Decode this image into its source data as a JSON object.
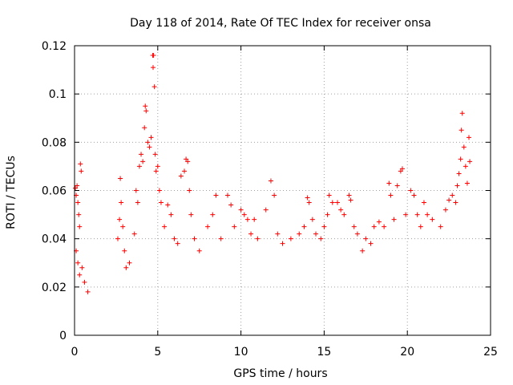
{
  "chart_data": {
    "type": "scatter",
    "title": "Day 118 of 2014, Rate Of TEC Index for receiver onsa",
    "xlabel": "GPS time / hours",
    "ylabel": "ROTI / TECUs",
    "xlim": [
      0,
      25
    ],
    "ylim": [
      0,
      0.12
    ],
    "x_ticks": [
      0,
      5,
      10,
      15,
      20,
      25
    ],
    "x_tick_labels": [
      "0",
      "5",
      "10",
      "15",
      "20",
      "25"
    ],
    "y_ticks": [
      0,
      0.02,
      0.04,
      0.06,
      0.08,
      0.1,
      0.12
    ],
    "y_tick_labels": [
      "0",
      "0.02",
      "0.04",
      "0.06",
      "0.08",
      "0.1",
      "0.12"
    ],
    "grid": true,
    "marker": "+",
    "series": [
      {
        "name": "onsa",
        "color": "#ff0000",
        "points": [
          [
            0.05,
            0.061
          ],
          [
            0.1,
            0.058
          ],
          [
            0.15,
            0.062
          ],
          [
            0.2,
            0.055
          ],
          [
            0.25,
            0.05
          ],
          [
            0.3,
            0.045
          ],
          [
            0.35,
            0.071
          ],
          [
            0.4,
            0.068
          ],
          [
            0.1,
            0.035
          ],
          [
            0.2,
            0.03
          ],
          [
            0.3,
            0.025
          ],
          [
            0.45,
            0.028
          ],
          [
            0.6,
            0.022
          ],
          [
            0.8,
            0.018
          ],
          [
            2.6,
            0.04
          ],
          [
            2.7,
            0.048
          ],
          [
            2.75,
            0.065
          ],
          [
            2.8,
            0.055
          ],
          [
            2.9,
            0.045
          ],
          [
            3.0,
            0.035
          ],
          [
            3.1,
            0.028
          ],
          [
            3.3,
            0.03
          ],
          [
            3.6,
            0.042
          ],
          [
            3.7,
            0.06
          ],
          [
            3.8,
            0.055
          ],
          [
            3.9,
            0.07
          ],
          [
            4.0,
            0.075
          ],
          [
            4.1,
            0.072
          ],
          [
            4.2,
            0.086
          ],
          [
            4.25,
            0.095
          ],
          [
            4.3,
            0.093
          ],
          [
            4.4,
            0.08
          ],
          [
            4.5,
            0.078
          ],
          [
            4.6,
            0.082
          ],
          [
            4.7,
            0.116
          ],
          [
            4.75,
            0.116
          ],
          [
            4.72,
            0.111
          ],
          [
            4.8,
            0.103
          ],
          [
            4.85,
            0.075
          ],
          [
            4.9,
            0.068
          ],
          [
            5.0,
            0.07
          ],
          [
            5.1,
            0.06
          ],
          [
            5.2,
            0.055
          ],
          [
            5.4,
            0.045
          ],
          [
            5.6,
            0.054
          ],
          [
            5.8,
            0.05
          ],
          [
            6.0,
            0.04
          ],
          [
            6.2,
            0.038
          ],
          [
            6.4,
            0.066
          ],
          [
            6.6,
            0.068
          ],
          [
            6.7,
            0.073
          ],
          [
            6.8,
            0.072
          ],
          [
            6.9,
            0.06
          ],
          [
            7.0,
            0.05
          ],
          [
            7.2,
            0.04
          ],
          [
            7.5,
            0.035
          ],
          [
            8.0,
            0.045
          ],
          [
            8.3,
            0.05
          ],
          [
            8.5,
            0.058
          ],
          [
            8.8,
            0.04
          ],
          [
            9.2,
            0.058
          ],
          [
            9.4,
            0.054
          ],
          [
            9.6,
            0.045
          ],
          [
            10.0,
            0.052
          ],
          [
            10.2,
            0.05
          ],
          [
            10.4,
            0.048
          ],
          [
            10.6,
            0.042
          ],
          [
            10.8,
            0.048
          ],
          [
            11.0,
            0.04
          ],
          [
            11.5,
            0.052
          ],
          [
            11.8,
            0.064
          ],
          [
            12.0,
            0.058
          ],
          [
            12.2,
            0.042
          ],
          [
            12.5,
            0.038
          ],
          [
            13.0,
            0.04
          ],
          [
            13.5,
            0.042
          ],
          [
            13.8,
            0.045
          ],
          [
            14.0,
            0.057
          ],
          [
            14.1,
            0.055
          ],
          [
            14.3,
            0.048
          ],
          [
            14.5,
            0.042
          ],
          [
            14.8,
            0.04
          ],
          [
            15.0,
            0.045
          ],
          [
            15.2,
            0.05
          ],
          [
            15.3,
            0.058
          ],
          [
            15.5,
            0.055
          ],
          [
            15.8,
            0.055
          ],
          [
            16.0,
            0.052
          ],
          [
            16.2,
            0.05
          ],
          [
            16.5,
            0.058
          ],
          [
            16.6,
            0.056
          ],
          [
            16.8,
            0.045
          ],
          [
            17.0,
            0.042
          ],
          [
            17.3,
            0.035
          ],
          [
            17.5,
            0.04
          ],
          [
            17.8,
            0.038
          ],
          [
            18.0,
            0.045
          ],
          [
            18.3,
            0.047
          ],
          [
            18.6,
            0.045
          ],
          [
            18.9,
            0.063
          ],
          [
            19.0,
            0.058
          ],
          [
            19.2,
            0.048
          ],
          [
            19.4,
            0.062
          ],
          [
            19.6,
            0.068
          ],
          [
            19.7,
            0.069
          ],
          [
            19.9,
            0.05
          ],
          [
            20.2,
            0.06
          ],
          [
            20.4,
            0.058
          ],
          [
            20.6,
            0.05
          ],
          [
            20.8,
            0.045
          ],
          [
            21.0,
            0.055
          ],
          [
            21.2,
            0.05
          ],
          [
            21.5,
            0.048
          ],
          [
            22.0,
            0.045
          ],
          [
            22.3,
            0.052
          ],
          [
            22.5,
            0.056
          ],
          [
            22.7,
            0.058
          ],
          [
            22.9,
            0.055
          ],
          [
            23.0,
            0.062
          ],
          [
            23.1,
            0.067
          ],
          [
            23.2,
            0.073
          ],
          [
            23.25,
            0.085
          ],
          [
            23.3,
            0.092
          ],
          [
            23.4,
            0.078
          ],
          [
            23.5,
            0.07
          ],
          [
            23.6,
            0.063
          ],
          [
            23.7,
            0.082
          ],
          [
            23.75,
            0.072
          ]
        ]
      }
    ]
  }
}
